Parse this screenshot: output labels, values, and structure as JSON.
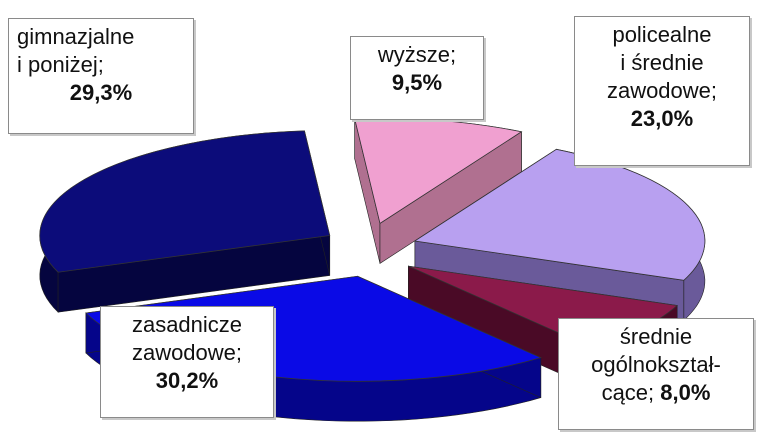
{
  "chart_data": {
    "type": "pie",
    "title": "",
    "slices": [
      {
        "label_lines": [
          "gimnazjalne",
          "i poniżej;"
        ],
        "value": 29.3,
        "value_label": "29,3%",
        "color": "#0c0c7a",
        "side_color": "#05053f"
      },
      {
        "label_lines": [
          "zasadnicze",
          "zawodowe;"
        ],
        "value": 30.2,
        "value_label": "30,2%",
        "color": "#0a0ae6",
        "side_color": "#05058a"
      },
      {
        "label_lines": [
          "średnie",
          "ogólnokształ-",
          "cące;"
        ],
        "value": 8.0,
        "value_label": "8,0%",
        "color": "#8b1a4a",
        "side_color": "#4a0a26"
      },
      {
        "label_lines": [
          "policealne",
          "i średnie",
          "zawodowe;"
        ],
        "value": 23.0,
        "value_label": "23,0%",
        "color": "#b8a0f0",
        "side_color": "#6a5a9a"
      },
      {
        "label_lines": [
          "wyższe;"
        ],
        "value": 9.5,
        "value_label": "9,5%",
        "color": "#f0a0d0",
        "side_color": "#b07090"
      }
    ]
  }
}
